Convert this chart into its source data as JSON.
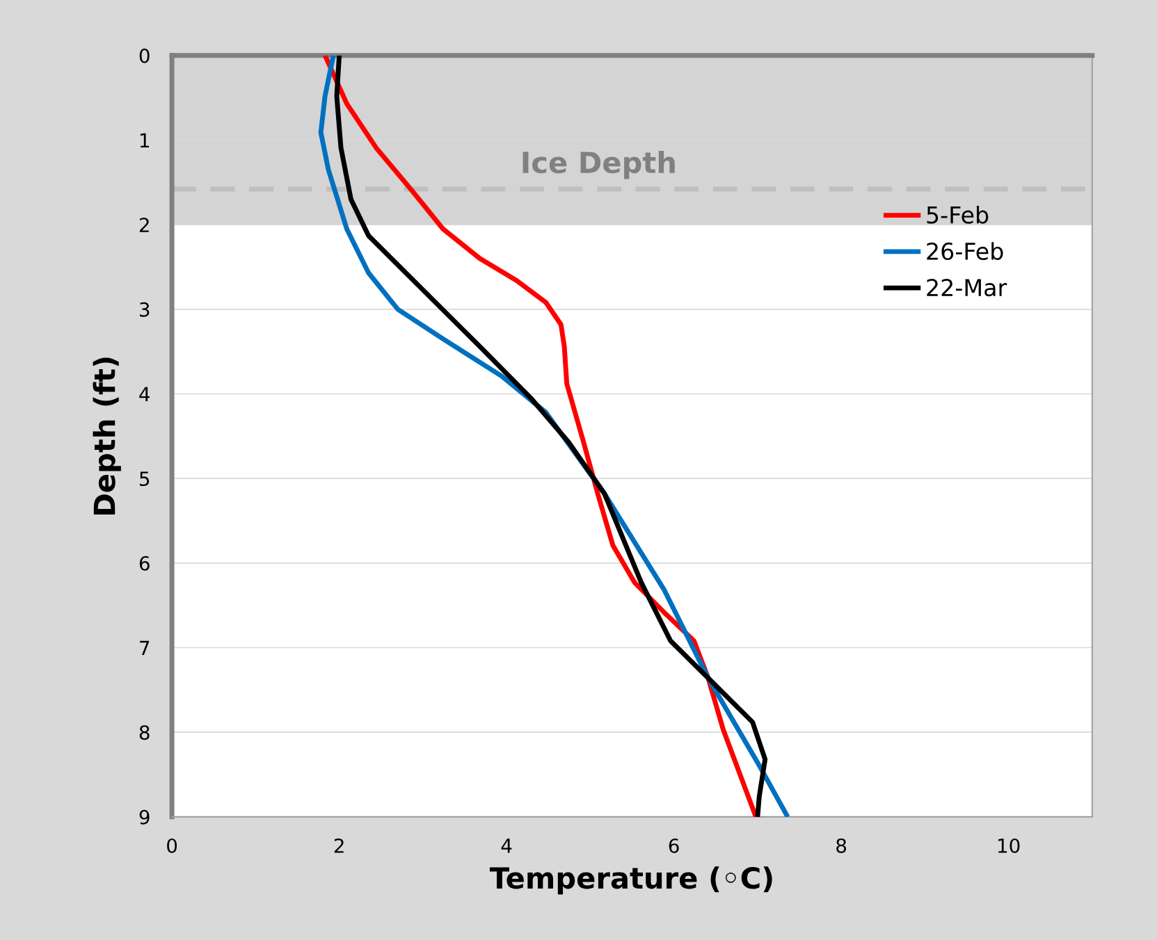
{
  "chart_data": {
    "type": "line",
    "xlabel": "Temperature (◦C)",
    "ylabel": "Depth (ft)",
    "xlim": [
      0,
      11
    ],
    "xticks": [
      0,
      2,
      4,
      6,
      8,
      10
    ],
    "ylim": [
      9,
      0
    ],
    "yticks": [
      0,
      1,
      2,
      3,
      4,
      5,
      6,
      7,
      8,
      9
    ],
    "grid": "y",
    "legend": "top right",
    "marker": "none",
    "line_style": "solid",
    "series": [
      {
        "name": "5-Feb",
        "color": "#ff0000",
        "x": [
          1.83,
          2.09,
          2.44,
          2.88,
          3.24,
          3.68,
          4.12,
          4.47,
          4.65,
          4.69,
          4.72,
          4.92,
          5.09,
          5.27,
          5.53,
          5.88,
          6.24,
          6.41,
          6.59,
          6.98
        ],
        "values": [
          0,
          0.57,
          1.09,
          1.61,
          2.05,
          2.4,
          2.66,
          2.92,
          3.18,
          3.44,
          3.88,
          4.57,
          5.18,
          5.79,
          6.23,
          6.58,
          6.92,
          7.36,
          7.97,
          9
        ]
      },
      {
        "name": "26-Feb",
        "color": "#0070c0",
        "x": [
          1.93,
          1.83,
          1.78,
          1.87,
          2.09,
          2.35,
          2.7,
          3.24,
          3.94,
          4.47,
          5.17,
          5.88,
          6.41,
          7.03,
          7.36
        ],
        "values": [
          0,
          0.48,
          0.91,
          1.35,
          2.05,
          2.57,
          3.0,
          3.35,
          3.79,
          4.22,
          5.18,
          6.31,
          7.36,
          8.41,
          9
        ]
      },
      {
        "name": "22-Mar",
        "color": "#000000",
        "x": [
          2.0,
          1.97,
          2.02,
          2.14,
          2.35,
          3.06,
          3.68,
          4.29,
          4.74,
          5.17,
          5.61,
          5.96,
          6.41,
          6.94,
          7.09,
          7.02,
          7.0
        ],
        "values": [
          0,
          0.48,
          1.09,
          1.7,
          2.13,
          2.83,
          3.44,
          4.05,
          4.57,
          5.18,
          6.23,
          6.92,
          7.36,
          7.88,
          8.32,
          8.76,
          9
        ]
      }
    ],
    "ref_lines": [
      {
        "axis": "y",
        "value": 1.58,
        "label": "Ice Depth",
        "color": "#bfbfbf",
        "line_style": "dashed"
      }
    ],
    "bands": [
      {
        "axis": "y",
        "from": 0,
        "to": 2,
        "color": "#b8b8b8"
      }
    ]
  }
}
